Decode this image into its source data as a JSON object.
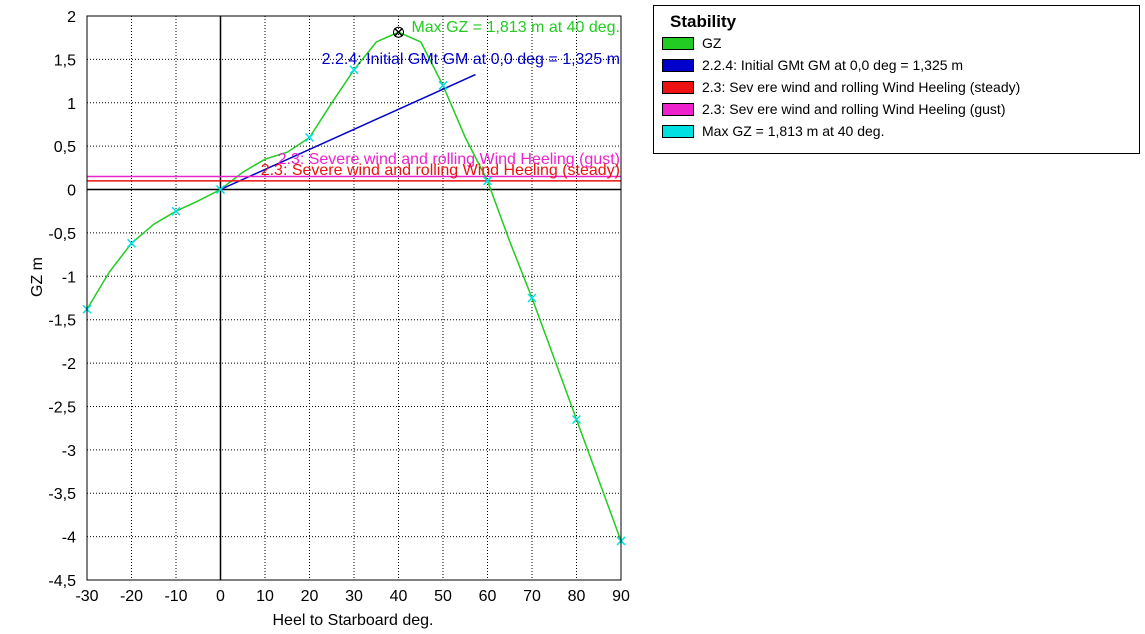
{
  "chart_data": {
    "type": "line",
    "title": "",
    "xlabel": "Heel to Starboard   deg.",
    "ylabel": "GZ   m",
    "xlim": [
      -30,
      90
    ],
    "ylim": [
      -4.5,
      2
    ],
    "x_ticks": [
      -30,
      -20,
      -10,
      0,
      10,
      20,
      30,
      40,
      50,
      60,
      70,
      80,
      90
    ],
    "y_ticks": [
      -4.5,
      -4,
      -3.5,
      -3,
      -2.5,
      -2,
      -1.5,
      -1,
      -0.5,
      0,
      0.5,
      1,
      1.5,
      2
    ],
    "x_tick_labels": [
      "-30",
      "-20",
      "-10",
      "0",
      "10",
      "20",
      "30",
      "40",
      "50",
      "60",
      "70",
      "80",
      "90"
    ],
    "y_tick_labels": [
      "-4,5",
      "-4",
      "-3,5",
      "-3",
      "-2,5",
      "-2",
      "-1,5",
      "-1",
      "-0,5",
      "0",
      "0,5",
      "1",
      "1,5",
      "2"
    ],
    "grid": true,
    "legend_position": "top-right",
    "series": [
      {
        "name": "GZ",
        "color": "#22cc22",
        "x": [
          -30,
          -25,
          -20,
          -15,
          -10,
          -5,
          0,
          5,
          10,
          15,
          20,
          25,
          30,
          35,
          40,
          45,
          50,
          55,
          60,
          65,
          70,
          75,
          80,
          85,
          90
        ],
        "y": [
          -1.38,
          -0.95,
          -0.62,
          -0.4,
          -0.25,
          -0.13,
          0,
          0.2,
          0.35,
          0.43,
          0.6,
          1.0,
          1.38,
          1.7,
          1.813,
          1.7,
          1.2,
          0.6,
          0.1,
          -0.6,
          -1.25,
          -1.95,
          -2.65,
          -3.35,
          -4.05
        ],
        "markers_x": [
          -30,
          -20,
          -10,
          0,
          20,
          30,
          50,
          60,
          70,
          80,
          90
        ],
        "markers_y": [
          -1.38,
          -0.62,
          -0.25,
          0,
          0.6,
          1.38,
          1.2,
          0.1,
          -1.25,
          -2.65,
          -4.05
        ]
      },
      {
        "name": "2.2.4: Initial GMt GM at 0,0 deg = 1,325 m",
        "color": "#0000cc",
        "x": [
          0,
          57.3
        ],
        "y": [
          0,
          1.325
        ]
      },
      {
        "name": "2.3: Sev ere wind and rolling Wind Heeling (steady)",
        "color": "#ee1111",
        "x": [
          -30,
          90
        ],
        "y": [
          0.1,
          0.1
        ]
      },
      {
        "name": "2.3: Sev ere wind and rolling Wind Heeling (gust)",
        "color": "#ee22cc",
        "x": [
          -30,
          90
        ],
        "y": [
          0.15,
          0.15
        ]
      },
      {
        "name": "Max GZ = 1,813 m at 40 deg.",
        "color": "#00e0e0",
        "x": [
          40
        ],
        "y": [
          1.813
        ]
      }
    ],
    "annotations": [
      {
        "text": "Max GZ = 1,813 m at 40 deg.",
        "color": "#22cc22",
        "x": 40,
        "y": 1.813
      },
      {
        "text": "2.2.4: Initial GMt GM at 0,0 deg = 1,325 m",
        "color": "#0000cc",
        "x": 30,
        "y": 1.5
      },
      {
        "text": "2.3: Severe wind and rolling Wind Heeling (gust)",
        "color": "#ee22cc",
        "x": 30,
        "y": 0.15
      },
      {
        "text": "2.3: Severe wind and rolling Wind Heeling (steady)",
        "color": "#ee1111",
        "x": 30,
        "y": 0.1
      }
    ],
    "legend": {
      "title": "Stability",
      "entries": [
        {
          "label": "GZ",
          "color": "#22cc22"
        },
        {
          "label": "2.2.4: Initial GMt GM at 0,0 deg = 1,325 m",
          "color": "#0000cc"
        },
        {
          "label": "2.3: Sev ere wind and rolling Wind Heeling (steady)",
          "color": "#ee1111"
        },
        {
          "label": "2.3: Sev ere wind and rolling Wind Heeling (gust)",
          "color": "#ee22cc"
        },
        {
          "label": "Max GZ = 1,813 m at 40 deg.",
          "color": "#00e0e0"
        }
      ]
    }
  }
}
